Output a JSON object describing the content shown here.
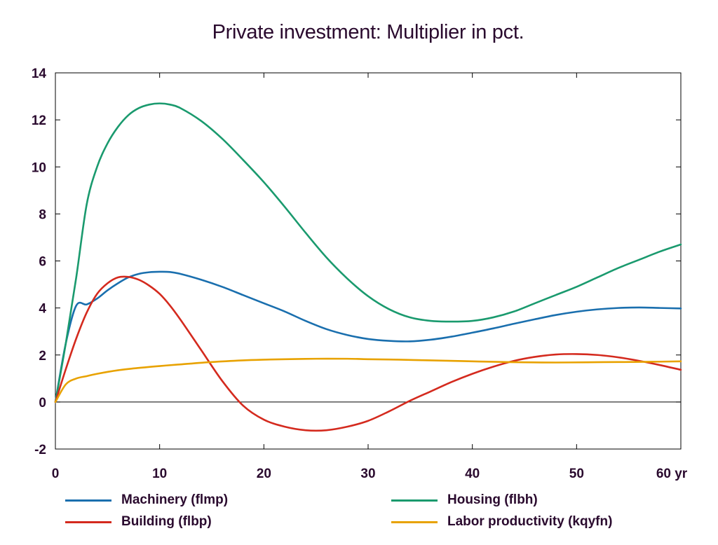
{
  "chart_data": {
    "type": "line",
    "title": "Private investment: Multiplier in pct.",
    "xlabel": "",
    "ylabel": "",
    "xlim": [
      0,
      60
    ],
    "ylim": [
      -2,
      14
    ],
    "x_ticks": [
      "0",
      "10",
      "20",
      "30",
      "40",
      "50",
      "60 yr"
    ],
    "y_ticks": [
      "-2",
      "0",
      "2",
      "4",
      "6",
      "8",
      "10",
      "12",
      "14"
    ],
    "grid": false,
    "legend_position": "bottom",
    "series": [
      {
        "name": "Machinery (flmp)",
        "color": "#1a6fae",
        "points": [
          [
            0,
            0
          ],
          [
            1,
            2.5
          ],
          [
            2,
            4.1
          ],
          [
            3,
            4.15
          ],
          [
            4,
            4.4
          ],
          [
            5,
            4.75
          ],
          [
            6,
            5.05
          ],
          [
            7,
            5.3
          ],
          [
            8,
            5.45
          ],
          [
            9,
            5.52
          ],
          [
            10,
            5.54
          ],
          [
            11,
            5.53
          ],
          [
            12,
            5.45
          ],
          [
            14,
            5.2
          ],
          [
            16,
            4.9
          ],
          [
            18,
            4.55
          ],
          [
            20,
            4.2
          ],
          [
            22,
            3.85
          ],
          [
            24,
            3.45
          ],
          [
            26,
            3.1
          ],
          [
            28,
            2.85
          ],
          [
            30,
            2.68
          ],
          [
            32,
            2.6
          ],
          [
            34,
            2.58
          ],
          [
            36,
            2.65
          ],
          [
            38,
            2.78
          ],
          [
            40,
            2.95
          ],
          [
            42,
            3.13
          ],
          [
            44,
            3.33
          ],
          [
            46,
            3.52
          ],
          [
            48,
            3.7
          ],
          [
            50,
            3.84
          ],
          [
            52,
            3.94
          ],
          [
            54,
            4.0
          ],
          [
            56,
            4.02
          ],
          [
            58,
            4.0
          ],
          [
            60,
            3.98
          ]
        ]
      },
      {
        "name": "Housing (flbh)",
        "color": "#1a9a6e",
        "points": [
          [
            0,
            0
          ],
          [
            1,
            2.5
          ],
          [
            2,
            5.3
          ],
          [
            3,
            8.4
          ],
          [
            4,
            10.0
          ],
          [
            5,
            11.0
          ],
          [
            6,
            11.7
          ],
          [
            7,
            12.2
          ],
          [
            8,
            12.5
          ],
          [
            9,
            12.65
          ],
          [
            10,
            12.7
          ],
          [
            11,
            12.65
          ],
          [
            12,
            12.5
          ],
          [
            14,
            11.95
          ],
          [
            16,
            11.2
          ],
          [
            18,
            10.3
          ],
          [
            20,
            9.35
          ],
          [
            22,
            8.3
          ],
          [
            24,
            7.2
          ],
          [
            26,
            6.15
          ],
          [
            28,
            5.25
          ],
          [
            30,
            4.5
          ],
          [
            32,
            3.95
          ],
          [
            34,
            3.6
          ],
          [
            36,
            3.45
          ],
          [
            38,
            3.42
          ],
          [
            40,
            3.45
          ],
          [
            42,
            3.6
          ],
          [
            44,
            3.85
          ],
          [
            46,
            4.2
          ],
          [
            48,
            4.55
          ],
          [
            50,
            4.9
          ],
          [
            52,
            5.3
          ],
          [
            54,
            5.7
          ],
          [
            56,
            6.05
          ],
          [
            58,
            6.4
          ],
          [
            60,
            6.7
          ]
        ]
      },
      {
        "name": "Building (flbp)",
        "color": "#d42a1e",
        "points": [
          [
            0,
            0
          ],
          [
            1,
            1.4
          ],
          [
            2,
            2.7
          ],
          [
            3,
            3.8
          ],
          [
            4,
            4.6
          ],
          [
            5,
            5.05
          ],
          [
            6,
            5.3
          ],
          [
            7,
            5.32
          ],
          [
            8,
            5.2
          ],
          [
            9,
            4.95
          ],
          [
            10,
            4.6
          ],
          [
            11,
            4.1
          ],
          [
            12,
            3.5
          ],
          [
            14,
            2.2
          ],
          [
            16,
            0.9
          ],
          [
            18,
            -0.15
          ],
          [
            20,
            -0.75
          ],
          [
            22,
            -1.05
          ],
          [
            24,
            -1.2
          ],
          [
            26,
            -1.2
          ],
          [
            28,
            -1.05
          ],
          [
            30,
            -0.8
          ],
          [
            32,
            -0.4
          ],
          [
            34,
            0.05
          ],
          [
            36,
            0.45
          ],
          [
            38,
            0.85
          ],
          [
            40,
            1.2
          ],
          [
            42,
            1.5
          ],
          [
            44,
            1.75
          ],
          [
            46,
            1.92
          ],
          [
            48,
            2.02
          ],
          [
            50,
            2.04
          ],
          [
            52,
            2.0
          ],
          [
            54,
            1.9
          ],
          [
            56,
            1.75
          ],
          [
            58,
            1.57
          ],
          [
            60,
            1.37
          ]
        ]
      },
      {
        "name": "Labor productivity (kqyfn)",
        "color": "#e8a200",
        "points": [
          [
            0,
            0
          ],
          [
            1,
            0.75
          ],
          [
            2,
            1.0
          ],
          [
            3,
            1.1
          ],
          [
            4,
            1.2
          ],
          [
            6,
            1.35
          ],
          [
            8,
            1.45
          ],
          [
            10,
            1.53
          ],
          [
            12,
            1.6
          ],
          [
            15,
            1.7
          ],
          [
            18,
            1.77
          ],
          [
            20,
            1.8
          ],
          [
            22,
            1.82
          ],
          [
            25,
            1.84
          ],
          [
            28,
            1.84
          ],
          [
            30,
            1.82
          ],
          [
            33,
            1.8
          ],
          [
            36,
            1.77
          ],
          [
            39,
            1.74
          ],
          [
            42,
            1.71
          ],
          [
            45,
            1.69
          ],
          [
            48,
            1.68
          ],
          [
            51,
            1.69
          ],
          [
            54,
            1.7
          ],
          [
            57,
            1.71
          ],
          [
            60,
            1.73
          ]
        ]
      }
    ]
  }
}
